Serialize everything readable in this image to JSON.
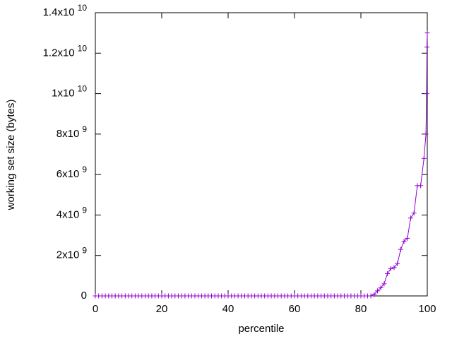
{
  "chart_data": {
    "type": "line",
    "xlabel": "percentile",
    "ylabel": "working set size (bytes)",
    "color": "#9400d3",
    "marker": "plus",
    "x": [
      0,
      1,
      2,
      3,
      4,
      5,
      6,
      7,
      8,
      9,
      10,
      11,
      12,
      13,
      14,
      15,
      16,
      17,
      18,
      19,
      20,
      21,
      22,
      23,
      24,
      25,
      26,
      27,
      28,
      29,
      30,
      31,
      32,
      33,
      34,
      35,
      36,
      37,
      38,
      39,
      40,
      41,
      42,
      43,
      44,
      45,
      46,
      47,
      48,
      49,
      50,
      51,
      52,
      53,
      54,
      55,
      56,
      57,
      58,
      59,
      60,
      61,
      62,
      63,
      64,
      65,
      66,
      67,
      68,
      69,
      70,
      71,
      72,
      73,
      74,
      75,
      76,
      77,
      78,
      79,
      80,
      81,
      82,
      83,
      84,
      85,
      86,
      87,
      88,
      89,
      90,
      91,
      92,
      93,
      94,
      95,
      96,
      97,
      98,
      99,
      99.6,
      99.8,
      99.9,
      100
    ],
    "values": [
      0,
      0,
      0,
      0,
      0,
      0,
      0,
      0,
      0,
      0,
      0,
      0,
      0,
      0,
      0,
      0,
      0,
      0,
      0,
      0,
      0,
      0,
      0,
      0,
      0,
      0,
      0,
      0,
      0,
      0,
      0,
      0,
      0,
      0,
      0,
      0,
      0,
      0,
      0,
      0,
      0,
      0,
      0,
      0,
      0,
      0,
      0,
      0,
      0,
      0,
      0,
      0,
      0,
      0,
      0,
      0,
      0,
      0,
      0,
      0,
      0,
      0,
      0,
      0,
      0,
      0,
      0,
      0,
      0,
      0,
      0,
      0,
      0,
      0,
      0,
      0,
      0,
      0,
      0,
      0,
      0,
      0,
      0,
      0,
      70000000,
      250000000,
      400000000,
      600000000,
      1100000000,
      1350000000,
      1400000000,
      1600000000,
      2300000000,
      2700000000,
      2850000000,
      3850000000,
      4100000000,
      5450000000,
      5450000000,
      6800000000,
      8000000000,
      10000000000,
      12300000000,
      13000000000
    ],
    "xlim": [
      0,
      100
    ],
    "xticks": [
      0,
      20,
      40,
      60,
      80,
      100
    ],
    "ylim": [
      0,
      14000000000
    ],
    "yticks": [
      0,
      {
        "value": 2000000000,
        "label": "2x10",
        "exponent": "9"
      },
      {
        "value": 4000000000,
        "label": "4x10",
        "exponent": "9"
      },
      {
        "value": 6000000000,
        "label": "6x10",
        "exponent": "9"
      },
      {
        "value": 8000000000,
        "label": "8x10",
        "exponent": "9"
      },
      {
        "value": 10000000000,
        "label": "1x10",
        "exponent": "10"
      },
      {
        "value": 12000000000,
        "label": "1.2x10",
        "exponent": "10"
      },
      {
        "value": 14000000000,
        "label": "1.4x10",
        "exponent": "10"
      }
    ]
  }
}
